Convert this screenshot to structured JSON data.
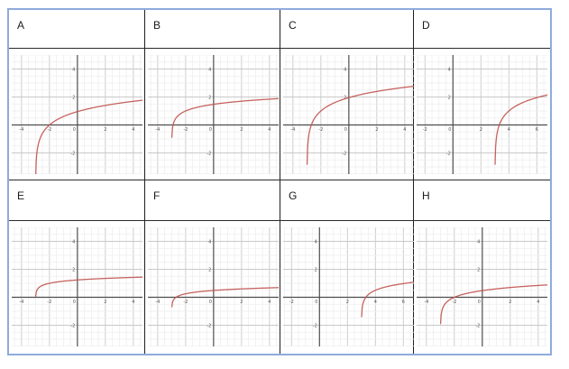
{
  "page": {
    "kind": "multiple-choice-graph-grid",
    "outer_border_color": "#8faadc",
    "cell_border_color": "#1f1f1f",
    "background": "#ffffff"
  },
  "cells": [
    {
      "label": "A"
    },
    {
      "label": "B"
    },
    {
      "label": "C"
    },
    {
      "label": "D"
    },
    {
      "label": "E"
    },
    {
      "label": "F"
    },
    {
      "label": "G"
    },
    {
      "label": "H"
    }
  ],
  "colors": {
    "curve": "#c0524e",
    "axis": "#4d4d4d",
    "grid_minor": "#ededed",
    "grid_major": "#c9c9c9",
    "tick_text": "#555555"
  },
  "chart_data": [
    {
      "label": "A",
      "type": "line",
      "function": "y = 2*log10(x+3)",
      "params": {
        "a": 2,
        "h": -3,
        "k": 0
      },
      "asymptote_x": -3,
      "x_intercept": -2,
      "xlim": [
        -4.7,
        4.7
      ],
      "ylim": [
        -3.5,
        5.0
      ],
      "x_ticks": [
        -4,
        -2,
        0,
        2,
        4
      ],
      "y_ticks": [
        4,
        2,
        -2
      ],
      "sample_points": [
        [
          -2.9,
          -2.0
        ],
        [
          -2,
          0
        ],
        [
          0,
          0.95
        ],
        [
          2,
          1.4
        ],
        [
          4,
          1.69
        ]
      ]
    },
    {
      "label": "B",
      "type": "line",
      "function": "y = log10(x+3) + 1",
      "params": {
        "a": 1,
        "h": -3,
        "k": 1
      },
      "asymptote_x": -3,
      "x_intercept": -2.9,
      "xlim": [
        -4.7,
        4.7
      ],
      "ylim": [
        -3.5,
        5.0
      ],
      "x_ticks": [
        -4,
        -2,
        0,
        2,
        4
      ],
      "y_ticks": [
        4,
        2,
        -2
      ],
      "sample_points": [
        [
          -2.9,
          0
        ],
        [
          -2,
          1
        ],
        [
          0,
          1.48
        ],
        [
          4,
          1.85
        ]
      ]
    },
    {
      "label": "C",
      "type": "line",
      "function": "y = 1 + 2*log10(x+3)",
      "params": {
        "a": 2,
        "h": -3,
        "k": 1
      },
      "asymptote_x": -3,
      "x_intercept": -2.68,
      "xlim": [
        -4.7,
        4.7
      ],
      "ylim": [
        -3.5,
        5.0
      ],
      "x_ticks": [
        -4,
        -2,
        0,
        2,
        4
      ],
      "y_ticks": [
        4,
        2,
        -2
      ],
      "sample_points": [
        [
          -2.68,
          0
        ],
        [
          -2,
          1
        ],
        [
          0,
          1.95
        ],
        [
          4,
          2.69
        ]
      ]
    },
    {
      "label": "D",
      "type": "line",
      "function": "y = 1 + 2*log10(x-3)",
      "params": {
        "a": 2,
        "h": 3,
        "k": 1
      },
      "asymptote_x": 3,
      "x_intercept": 3.32,
      "xlim": [
        -2.6,
        6.8
      ],
      "ylim": [
        -3.5,
        5.0
      ],
      "x_ticks": [
        -2,
        0,
        2,
        4,
        6
      ],
      "y_ticks": [
        4,
        2,
        -2
      ],
      "sample_points": [
        [
          3.32,
          0
        ],
        [
          4,
          1
        ],
        [
          6,
          1.95
        ],
        [
          6.8,
          2.16
        ]
      ]
    },
    {
      "label": "E",
      "type": "line",
      "function": "y = 1 + 0.5*log10(x+3)",
      "params": {
        "a": 0.5,
        "h": -3,
        "k": 1
      },
      "asymptote_x": -3,
      "x_intercept": -2.99,
      "xlim": [
        -4.7,
        4.7
      ],
      "ylim": [
        -3.5,
        5.0
      ],
      "x_ticks": [
        -4,
        -2,
        0,
        2,
        4
      ],
      "y_ticks": [
        4,
        2,
        -2
      ],
      "sample_points": [
        [
          -2.99,
          0
        ],
        [
          -2,
          1
        ],
        [
          0,
          1.24
        ],
        [
          4,
          1.42
        ]
      ]
    },
    {
      "label": "F",
      "type": "line",
      "function": "y = 0.25 + 0.5*log10(x+3)",
      "params": {
        "a": 0.5,
        "h": -3,
        "k": 0.25
      },
      "asymptote_x": -3,
      "x_intercept": -2.68,
      "xlim": [
        -4.7,
        4.7
      ],
      "ylim": [
        -3.5,
        5.0
      ],
      "x_ticks": [
        -4,
        -2,
        0,
        2,
        4
      ],
      "y_ticks": [
        4,
        2,
        -2
      ],
      "sample_points": [
        [
          -2.68,
          0
        ],
        [
          -2,
          0.25
        ],
        [
          0,
          0.49
        ],
        [
          4,
          0.67
        ]
      ]
    },
    {
      "label": "G",
      "type": "line",
      "function": "y = 0.5 + log10(x-3)",
      "params": {
        "a": 1,
        "h": 3,
        "k": 0.5
      },
      "asymptote_x": 3,
      "x_intercept": 3.32,
      "xlim": [
        -2.6,
        6.8
      ],
      "ylim": [
        -3.5,
        5.0
      ],
      "x_ticks": [
        -2,
        0,
        2,
        4,
        6
      ],
      "y_ticks": [
        4,
        2,
        -2
      ],
      "sample_points": [
        [
          3.32,
          0
        ],
        [
          4,
          0.5
        ],
        [
          6,
          0.98
        ],
        [
          6.8,
          1.08
        ]
      ]
    },
    {
      "label": "H",
      "type": "line",
      "function": "y = log10(x+3)",
      "params": {
        "a": 1,
        "h": -3,
        "k": 0
      },
      "asymptote_x": -3,
      "x_intercept": -2,
      "xlim": [
        -4.7,
        4.7
      ],
      "ylim": [
        -3.5,
        5.0
      ],
      "x_ticks": [
        -4,
        -2,
        0,
        2,
        4
      ],
      "y_ticks": [
        4,
        2,
        -2
      ],
      "sample_points": [
        [
          -2,
          0
        ],
        [
          0,
          0.48
        ],
        [
          4,
          0.85
        ]
      ]
    }
  ]
}
